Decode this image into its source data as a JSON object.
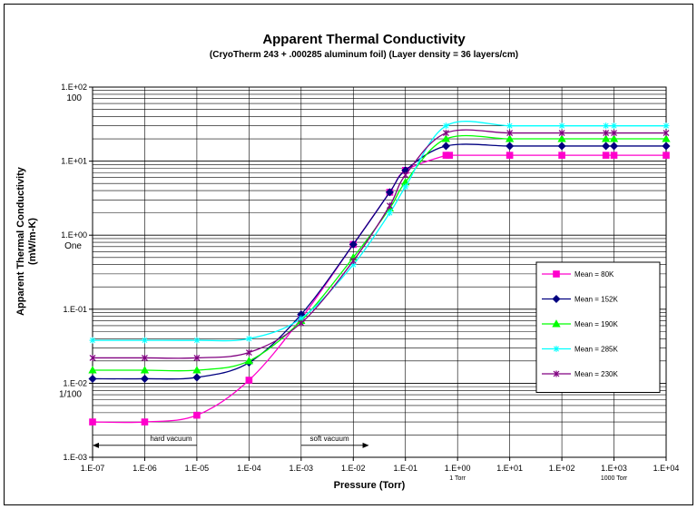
{
  "chart_data": {
    "type": "line",
    "title": "Apparent Thermal Conductivity",
    "subtitle": "(CryoTherm 243 + .000285 aluminum foil) (Layer density = 36 layers/cm)",
    "xlabel": "Pressure (Torr)",
    "ylabel": "Apparent Thermal Conductivity",
    "ylabel_unit": "(mW/m-K)",
    "x_scale": "log",
    "y_scale": "log",
    "xlim": [
      1e-07,
      10000
    ],
    "ylim": [
      0.001,
      100
    ],
    "x_tick_values": [
      1e-07,
      1e-06,
      1e-05,
      0.0001,
      0.001,
      0.01,
      0.1,
      1,
      10,
      100,
      1000,
      10000
    ],
    "x_tick_labels": [
      "1.E-07",
      "1.E-06",
      "1.E-05",
      "1.E-04",
      "1.E-03",
      "1.E-02",
      "1.E-01",
      "1.E+00",
      "1.E+01",
      "1.E+02",
      "1.E+03",
      "1.E+04"
    ],
    "y_tick_values": [
      0.001,
      0.01,
      0.1,
      1,
      10,
      100
    ],
    "y_tick_labels": [
      "1.E-03",
      "1.E-02",
      "1.E-01",
      "1.E+00",
      "1.E+01",
      "1.E+02"
    ],
    "grid": true,
    "legend_position": "right",
    "annotations": [
      {
        "text": "100",
        "x": 1e-07,
        "y": 100,
        "role": "y-extra"
      },
      {
        "text": "One",
        "x": 1e-07,
        "y": 1,
        "role": "y-extra"
      },
      {
        "text": "1/100",
        "x": 1e-07,
        "y": 0.01,
        "role": "y-extra"
      },
      {
        "text": "1 Torr",
        "x": 1,
        "y": 0.001,
        "role": "x-extra"
      },
      {
        "text": "1000 Torr",
        "x": 1000,
        "y": 0.001,
        "role": "x-extra"
      },
      {
        "text": "hard   vacuum",
        "x": 3.2e-06,
        "y": 0.00145,
        "role": "arrow-left",
        "arrow_from": 1e-05,
        "arrow_to": 1e-07
      },
      {
        "text": "soft   vacuum",
        "x": 0.0035,
        "y": 0.00145,
        "role": "arrow-right",
        "arrow_from": 0.001,
        "arrow_to": 0.02
      }
    ],
    "series": [
      {
        "name": "Mean = 80K",
        "color": "#FF00CC",
        "marker": "square",
        "points": [
          [
            1e-07,
            0.003
          ],
          [
            1e-06,
            0.003
          ],
          [
            1e-05,
            0.0037
          ],
          [
            0.0001,
            0.011
          ],
          [
            0.001,
            0.075
          ],
          [
            0.01,
            0.75
          ],
          [
            0.05,
            3.8
          ],
          [
            0.1,
            7.5
          ],
          [
            0.6,
            12
          ],
          [
            0.7,
            12
          ],
          [
            10,
            12
          ],
          [
            100,
            12
          ],
          [
            700,
            12
          ],
          [
            1000,
            12
          ],
          [
            10000,
            12
          ]
        ]
      },
      {
        "name": "Mean = 152K",
        "color": "#000080",
        "marker": "diamond",
        "points": [
          [
            1e-07,
            0.0115
          ],
          [
            1e-06,
            0.0115
          ],
          [
            1e-05,
            0.012
          ],
          [
            0.0001,
            0.019
          ],
          [
            0.001,
            0.085
          ],
          [
            0.01,
            0.75
          ],
          [
            0.05,
            3.8
          ],
          [
            0.1,
            7.5
          ],
          [
            0.6,
            16
          ],
          [
            10,
            16
          ],
          [
            100,
            16
          ],
          [
            700,
            16
          ],
          [
            1000,
            16
          ],
          [
            10000,
            16
          ]
        ]
      },
      {
        "name": "Mean = 190K",
        "color": "#00FF00",
        "marker": "triangle",
        "points": [
          [
            1e-07,
            0.015
          ],
          [
            1e-06,
            0.015
          ],
          [
            1e-05,
            0.015
          ],
          [
            0.0001,
            0.02
          ],
          [
            0.001,
            0.07
          ],
          [
            0.01,
            0.5
          ],
          [
            0.05,
            2.3
          ],
          [
            0.1,
            5.2
          ],
          [
            0.6,
            20
          ],
          [
            10,
            20
          ],
          [
            100,
            20
          ],
          [
            700,
            20
          ],
          [
            1000,
            20
          ],
          [
            10000,
            20
          ]
        ]
      },
      {
        "name": "Mean = 285K",
        "color": "#00FFFF",
        "marker": "star",
        "points": [
          [
            1e-07,
            0.038
          ],
          [
            1e-06,
            0.038
          ],
          [
            1e-05,
            0.038
          ],
          [
            0.0001,
            0.04
          ],
          [
            0.001,
            0.075
          ],
          [
            0.01,
            0.4
          ],
          [
            0.05,
            2
          ],
          [
            0.1,
            4.5
          ],
          [
            0.6,
            30
          ],
          [
            10,
            30
          ],
          [
            100,
            30
          ],
          [
            700,
            30
          ],
          [
            1000,
            30
          ],
          [
            10000,
            30
          ]
        ]
      },
      {
        "name": "Mean = 230K",
        "color": "#800080",
        "marker": "x",
        "points": [
          [
            1e-07,
            0.022
          ],
          [
            1e-06,
            0.022
          ],
          [
            1e-05,
            0.022
          ],
          [
            0.0001,
            0.026
          ],
          [
            0.001,
            0.065
          ],
          [
            0.01,
            0.45
          ],
          [
            0.05,
            2.5
          ],
          [
            0.1,
            6.5
          ],
          [
            0.6,
            24
          ],
          [
            10,
            24
          ],
          [
            100,
            24
          ],
          [
            700,
            24
          ],
          [
            1000,
            24
          ],
          [
            10000,
            24
          ]
        ]
      }
    ]
  }
}
